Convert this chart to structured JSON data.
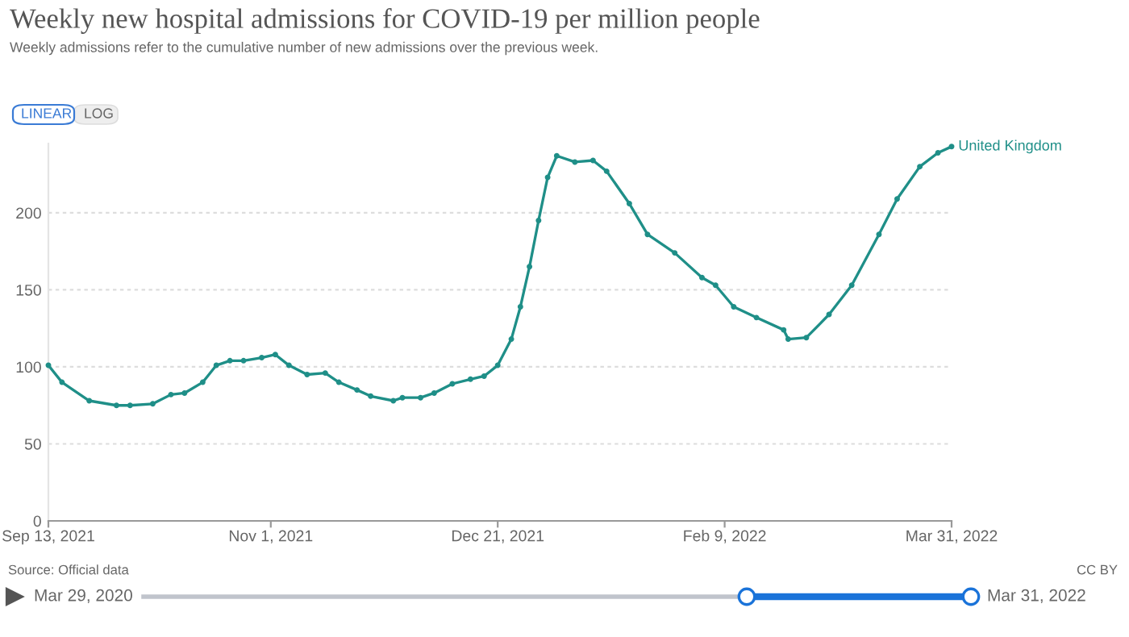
{
  "chart_data": {
    "type": "line",
    "title": "Weekly new hospital admissions for COVID-19 per million people",
    "subtitle": "Weekly admissions refer to the cumulative number of new admissions over the previous week.",
    "x": [
      "2021-09-13",
      "2021-09-16",
      "2021-09-22",
      "2021-09-28",
      "2021-10-01",
      "2021-10-06",
      "2021-10-10",
      "2021-10-13",
      "2021-10-17",
      "2021-10-20",
      "2021-10-23",
      "2021-10-26",
      "2021-10-30",
      "2021-11-02",
      "2021-11-05",
      "2021-11-09",
      "2021-11-13",
      "2021-11-16",
      "2021-11-20",
      "2021-11-23",
      "2021-11-28",
      "2021-11-30",
      "2021-12-04",
      "2021-12-07",
      "2021-12-11",
      "2021-12-15",
      "2021-12-18",
      "2021-12-21",
      "2021-12-24",
      "2021-12-26",
      "2021-12-28",
      "2021-12-30",
      "2022-01-01",
      "2022-01-03",
      "2022-01-07",
      "2022-01-11",
      "2022-01-14",
      "2022-01-19",
      "2022-01-23",
      "2022-01-29",
      "2022-02-04",
      "2022-02-07",
      "2022-02-11",
      "2022-02-16",
      "2022-02-22",
      "2022-02-23",
      "2022-02-27",
      "2022-03-04",
      "2022-03-09",
      "2022-03-15",
      "2022-03-19",
      "2022-03-24",
      "2022-03-28",
      "2022-03-31"
    ],
    "series": [
      {
        "name": "United Kingdom",
        "color": "#1f8f88",
        "values": [
          101,
          90,
          78,
          75,
          75,
          76,
          82,
          83,
          90,
          101,
          104,
          104,
          106,
          108,
          101,
          95,
          96,
          90,
          85,
          81,
          78,
          80,
          80,
          83,
          89,
          92,
          94,
          101,
          118,
          139,
          165,
          195,
          223,
          237,
          233,
          234,
          227,
          206,
          186,
          174,
          158,
          153,
          139,
          132,
          124,
          118,
          119,
          134,
          153,
          186,
          209,
          230,
          239,
          243
        ]
      }
    ],
    "xlim": [
      "2021-09-13",
      "2022-03-31"
    ],
    "xticks": [
      {
        "value": "2021-09-13",
        "label": "Sep 13, 2021"
      },
      {
        "value": "2021-11-01",
        "label": "Nov 1, 2021"
      },
      {
        "value": "2021-12-21",
        "label": "Dec 21, 2021"
      },
      {
        "value": "2022-02-09",
        "label": "Feb 9, 2022"
      },
      {
        "value": "2022-03-31",
        "label": "Mar 31, 2022"
      }
    ],
    "ylim": [
      0,
      245
    ],
    "yticks": [
      0,
      50,
      100,
      150,
      200
    ],
    "grid": "y",
    "marker": "circle",
    "line_style": "solid",
    "legend": false,
    "annotations": [
      "LINEAR",
      "LOG",
      "Source: Official data",
      "CC BY",
      "Mar 29, 2020",
      "Mar 31, 2022"
    ]
  }
}
